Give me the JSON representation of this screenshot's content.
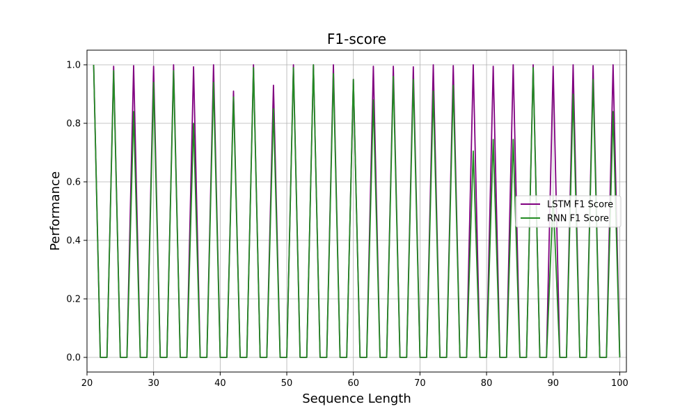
{
  "chart_data": {
    "type": "line",
    "title": "F1-score",
    "xlabel": "Sequence Length",
    "ylabel": "Performance",
    "xlim": [
      20,
      101
    ],
    "ylim": [
      -0.05,
      1.05
    ],
    "xticks": [
      20,
      30,
      40,
      50,
      60,
      70,
      80,
      90,
      100
    ],
    "yticks": [
      0.0,
      0.2,
      0.4,
      0.6,
      0.8,
      1.0
    ],
    "grid": true,
    "legend_position": "center-right",
    "x": [
      21,
      22,
      23,
      24,
      25,
      26,
      27,
      28,
      29,
      30,
      31,
      32,
      33,
      34,
      35,
      36,
      37,
      38,
      39,
      40,
      41,
      42,
      43,
      44,
      45,
      46,
      47,
      48,
      49,
      50,
      51,
      52,
      53,
      54,
      55,
      56,
      57,
      58,
      59,
      60,
      61,
      62,
      63,
      64,
      65,
      66,
      67,
      68,
      69,
      70,
      71,
      72,
      73,
      74,
      75,
      76,
      77,
      78,
      79,
      80,
      81,
      82,
      83,
      84,
      85,
      86,
      87,
      88,
      89,
      90,
      91,
      92,
      93,
      94,
      95,
      96,
      97,
      98,
      99,
      100
    ],
    "series": [
      {
        "name": "LSTM F1 Score",
        "color": "#800080",
        "values": [
          1.0,
          0,
          0,
          0.995,
          0,
          0,
          0.997,
          0,
          0,
          0.995,
          0,
          0,
          1.0,
          0,
          0,
          0.993,
          0,
          0,
          1.0,
          0,
          0,
          0.91,
          0,
          0,
          1.0,
          0,
          0,
          0.93,
          0,
          0,
          1.0,
          0,
          0,
          1.0,
          0,
          0,
          1.0,
          0,
          0,
          0.95,
          0,
          0,
          0.995,
          0,
          0,
          0.995,
          0,
          0,
          0.993,
          0,
          0,
          1.0,
          0,
          0,
          0.997,
          0,
          0,
          1.0,
          0,
          0,
          0.995,
          0,
          0,
          1.0,
          0,
          0,
          1.0,
          0,
          0,
          0.995,
          0,
          0,
          1.0,
          0,
          0,
          0.997,
          0,
          0,
          1.0,
          0
        ]
      },
      {
        "name": "RNN F1 Score",
        "color": "#228b22",
        "values": [
          1.0,
          0,
          0,
          0.98,
          0,
          0,
          0.84,
          0,
          0,
          0.94,
          0,
          0,
          0.98,
          0,
          0,
          0.8,
          0,
          0,
          0.94,
          0,
          0,
          0.89,
          0,
          0,
          0.99,
          0,
          0,
          0.85,
          0,
          0,
          0.99,
          0,
          0,
          1.0,
          0,
          0,
          0.97,
          0,
          0,
          0.95,
          0,
          0,
          0.88,
          0,
          0,
          0.96,
          0,
          0,
          0.95,
          0,
          0,
          0.91,
          0,
          0,
          0.93,
          0,
          0,
          0.705,
          0,
          0,
          0.745,
          0,
          0,
          0.745,
          0,
          0,
          0.99,
          0,
          0,
          0.55,
          0,
          0,
          0.9,
          0,
          0,
          0.95,
          0,
          0,
          0.84,
          0
        ]
      }
    ]
  }
}
